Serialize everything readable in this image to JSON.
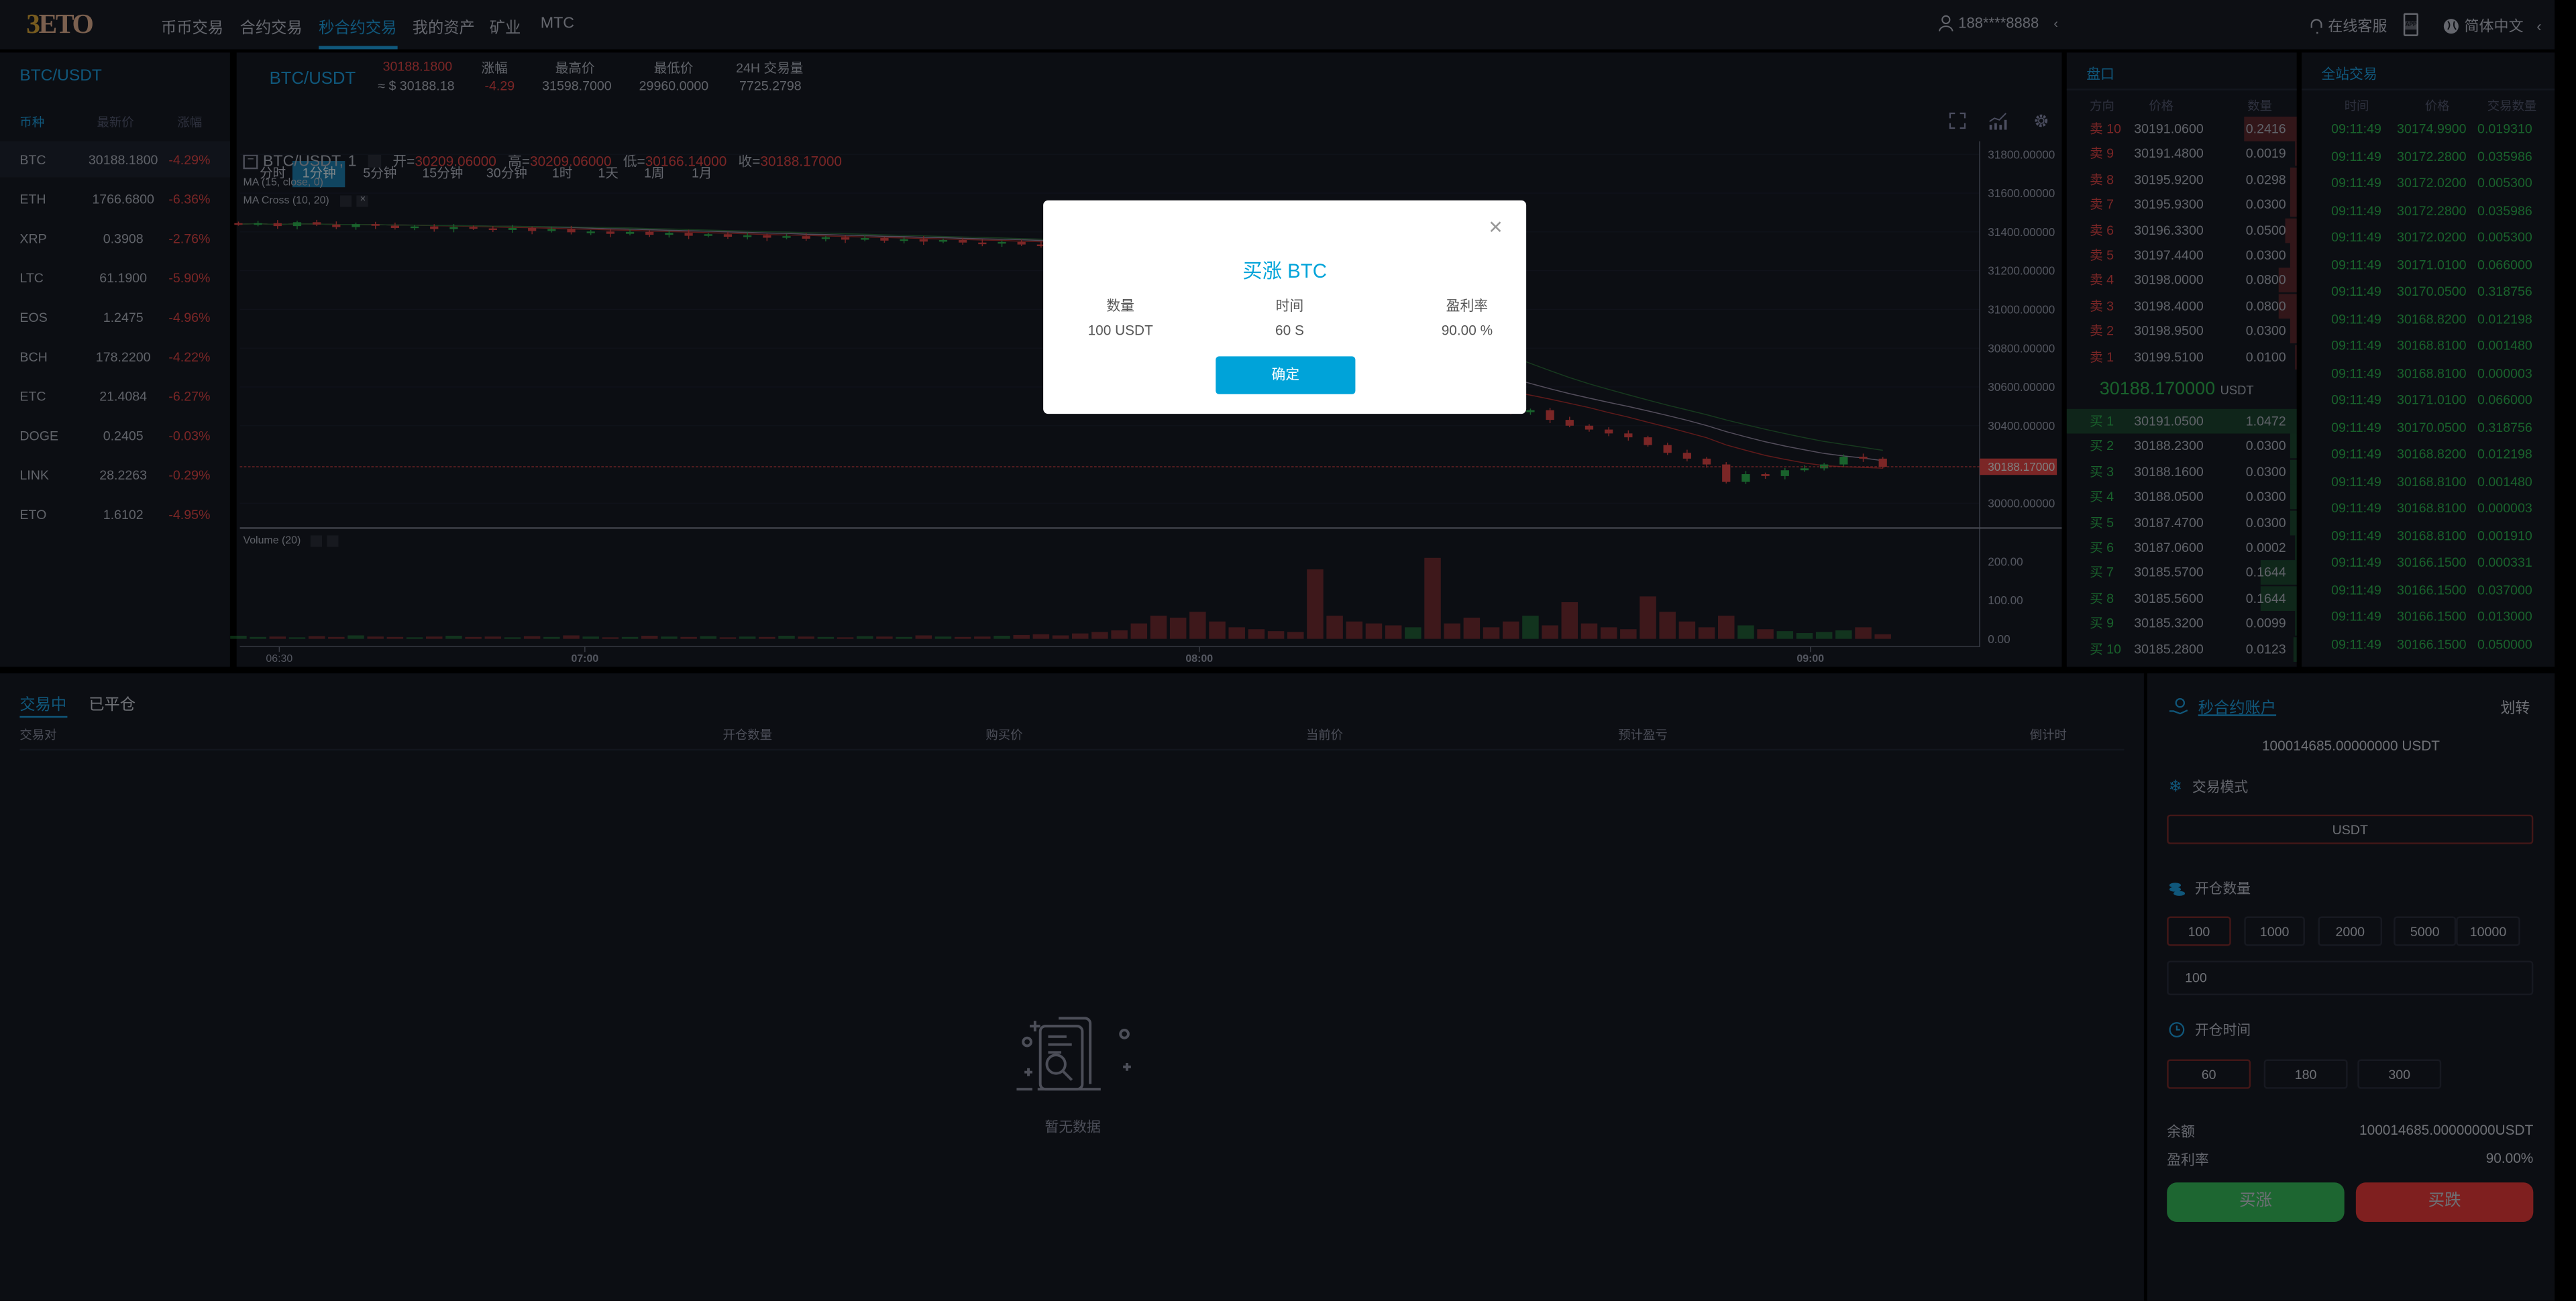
{
  "header": {
    "logo": "3ETO",
    "nav": [
      {
        "label": "币币交易",
        "active": false
      },
      {
        "label": "合约交易",
        "active": false
      },
      {
        "label": "秒合约交易",
        "active": true
      },
      {
        "label": "我的资产",
        "active": false
      },
      {
        "label": "矿业",
        "active": false
      },
      {
        "label": "MTC",
        "active": false
      }
    ],
    "user": "188****8888",
    "support": "在线客服",
    "app_icon_text": "APP",
    "language": "简体中文"
  },
  "markets": {
    "title": "BTC/USDT",
    "columns": [
      "币种",
      "最新价",
      "涨幅"
    ],
    "rows": [
      {
        "coin": "BTC",
        "price": "30188.1800",
        "change": "-4.29%"
      },
      {
        "coin": "ETH",
        "price": "1766.6800",
        "change": "-6.36%"
      },
      {
        "coin": "XRP",
        "price": "0.3908",
        "change": "-2.76%"
      },
      {
        "coin": "LTC",
        "price": "61.1900",
        "change": "-5.90%"
      },
      {
        "coin": "EOS",
        "price": "1.2475",
        "change": "-4.96%"
      },
      {
        "coin": "BCH",
        "price": "178.2200",
        "change": "-4.22%"
      },
      {
        "coin": "ETC",
        "price": "21.4084",
        "change": "-6.27%"
      },
      {
        "coin": "DOGE",
        "price": "0.2405",
        "change": "-0.03%"
      },
      {
        "coin": "LINK",
        "price": "28.2263",
        "change": "-0.29%"
      },
      {
        "coin": "ETO",
        "price": "1.6102",
        "change": "-4.95%"
      }
    ]
  },
  "ticker": {
    "pair": "BTC/USDT",
    "last_price": "30188.1800",
    "usd_price": "≈ $ 30188.18",
    "change_label": "涨幅",
    "change": "-4.29",
    "high_label": "最高价",
    "high": "31598.7000",
    "low_label": "最低价",
    "low": "29960.0000",
    "volume_label": "24H 交易量",
    "volume": "7725.2798"
  },
  "intervals": [
    {
      "label": "分时",
      "active": false
    },
    {
      "label": "1分钟",
      "active": true
    },
    {
      "label": "5分钟",
      "active": false
    },
    {
      "label": "15分钟",
      "active": false
    },
    {
      "label": "30分钟",
      "active": false
    },
    {
      "label": "1时",
      "active": false
    },
    {
      "label": "1天",
      "active": false
    },
    {
      "label": "1周",
      "active": false
    },
    {
      "label": "1月",
      "active": false
    }
  ],
  "chart_legend": {
    "symbol": "BTC/USDT, 1",
    "open_label": "开=",
    "open": "30209.06000",
    "high_label": "高=",
    "high": "30209.06000",
    "low_label": "低=",
    "low": "30166.14000",
    "close_label": "收=",
    "close": "30188.17000",
    "ma": "MA (15, close, 0)",
    "ma_cross": "MA Cross (10, 20)",
    "volume": "Volume (20)"
  },
  "chart_data": {
    "type": "candlestick",
    "colors": {
      "up": "#2fb350",
      "down": "#e04545",
      "ma15": "#9a8fa8",
      "ma10": "#b03030",
      "ma20": "#2a6a38"
    },
    "y_ticks": [
      "31800.00000",
      "31600.00000",
      "31400.00000",
      "31200.00000",
      "31000.00000",
      "30800.00000",
      "30600.00000",
      "30400.00000",
      "30000.00000"
    ],
    "y_tick_values": [
      31800,
      31600,
      31400,
      31200,
      31000,
      30800,
      30600,
      30400,
      30000
    ],
    "current_price": 30188.17,
    "current_price_label": "30188.17000",
    "volume_ticks": [
      "200.00",
      "100.00",
      "0.00"
    ],
    "volume_tick_values": [
      200,
      100,
      0
    ],
    "x_ticks": [
      "06:30",
      "07:00",
      "08:00",
      "09:00"
    ],
    "closes": [
      31440,
      31445,
      31430,
      31450,
      31438,
      31425,
      31440,
      31432,
      31420,
      31428,
      31415,
      31425,
      31418,
      31410,
      31420,
      31405,
      31415,
      31398,
      31402,
      31390,
      31400,
      31385,
      31395,
      31380,
      31388,
      31375,
      31382,
      31370,
      31378,
      31365,
      31372,
      31360,
      31368,
      31355,
      31362,
      31350,
      31358,
      31345,
      31340,
      31348,
      31335,
      31330,
      31320,
      31310,
      31300,
      31290,
      31250,
      31180,
      31100,
      31020,
      30950,
      30900,
      30840,
      30780,
      30720,
      30690,
      30660,
      30640,
      30620,
      30600,
      30610,
      30580,
      30560,
      30520,
      30500,
      30470,
      30480,
      30430,
      30400,
      30380,
      30360,
      30340,
      30300,
      30260,
      30230,
      30200,
      30110,
      30150,
      30140,
      30170,
      30180,
      30200,
      30240,
      30230,
      30188
    ],
    "volumes": [
      8,
      5,
      6,
      4,
      7,
      5,
      9,
      6,
      5,
      4,
      6,
      8,
      5,
      6,
      4,
      7,
      5,
      9,
      6,
      4,
      5,
      8,
      6,
      5,
      7,
      4,
      6,
      5,
      8,
      6,
      5,
      4,
      7,
      6,
      5,
      9,
      6,
      5,
      6,
      8,
      10,
      12,
      9,
      14,
      18,
      22,
      40,
      60,
      55,
      70,
      45,
      30,
      25,
      20,
      18,
      180,
      60,
      45,
      40,
      35,
      30,
      210,
      40,
      55,
      30,
      45,
      60,
      35,
      95,
      40,
      30,
      25,
      110,
      70,
      45,
      30,
      60,
      35,
      25,
      20,
      15,
      18,
      22,
      30,
      12
    ]
  },
  "orderbook": {
    "title": "盘口",
    "columns": [
      "方向",
      "价格",
      "数量"
    ],
    "asks": [
      {
        "side": "卖 10",
        "price": "30191.0600",
        "qty": "0.2416"
      },
      {
        "side": "卖 9",
        "price": "30191.4800",
        "qty": "0.0019"
      },
      {
        "side": "卖 8",
        "price": "30195.9200",
        "qty": "0.0298"
      },
      {
        "side": "卖 7",
        "price": "30195.9300",
        "qty": "0.0300"
      },
      {
        "side": "卖 6",
        "price": "30196.3300",
        "qty": "0.0500"
      },
      {
        "side": "卖 5",
        "price": "30197.4400",
        "qty": "0.0300"
      },
      {
        "side": "卖 4",
        "price": "30198.0000",
        "qty": "0.0800"
      },
      {
        "side": "卖 3",
        "price": "30198.4000",
        "qty": "0.0800"
      },
      {
        "side": "卖 2",
        "price": "30198.9500",
        "qty": "0.0300"
      },
      {
        "side": "卖 1",
        "price": "30199.5100",
        "qty": "0.0100"
      }
    ],
    "mid_price": "30188.170000",
    "mid_unit": "USDT",
    "bids": [
      {
        "side": "买 1",
        "price": "30191.0500",
        "qty": "1.0472"
      },
      {
        "side": "买 2",
        "price": "30188.2300",
        "qty": "0.0300"
      },
      {
        "side": "买 3",
        "price": "30188.1600",
        "qty": "0.0300"
      },
      {
        "side": "买 4",
        "price": "30188.0500",
        "qty": "0.0300"
      },
      {
        "side": "买 5",
        "price": "30187.4700",
        "qty": "0.0300"
      },
      {
        "side": "买 6",
        "price": "30187.0600",
        "qty": "0.0002"
      },
      {
        "side": "买 7",
        "price": "30185.5700",
        "qty": "0.1644"
      },
      {
        "side": "买 8",
        "price": "30185.5600",
        "qty": "0.1644"
      },
      {
        "side": "买 9",
        "price": "30185.3200",
        "qty": "0.0099"
      },
      {
        "side": "买 10",
        "price": "30185.2800",
        "qty": "0.0123"
      }
    ]
  },
  "trades": {
    "title": "全站交易",
    "columns": [
      "时间",
      "价格",
      "交易数量"
    ],
    "rows": [
      {
        "time": "09:11:49",
        "price": "30174.9900",
        "qty": "0.019310"
      },
      {
        "time": "09:11:49",
        "price": "30172.2800",
        "qty": "0.035986"
      },
      {
        "time": "09:11:49",
        "price": "30172.0200",
        "qty": "0.005300"
      },
      {
        "time": "09:11:49",
        "price": "30172.2800",
        "qty": "0.035986"
      },
      {
        "time": "09:11:49",
        "price": "30172.0200",
        "qty": "0.005300"
      },
      {
        "time": "09:11:49",
        "price": "30171.0100",
        "qty": "0.066000"
      },
      {
        "time": "09:11:49",
        "price": "30170.0500",
        "qty": "0.318756"
      },
      {
        "time": "09:11:49",
        "price": "30168.8200",
        "qty": "0.012198"
      },
      {
        "time": "09:11:49",
        "price": "30168.8100",
        "qty": "0.001480"
      },
      {
        "time": "09:11:49",
        "price": "30168.8100",
        "qty": "0.000003"
      },
      {
        "time": "09:11:49",
        "price": "30171.0100",
        "qty": "0.066000"
      },
      {
        "time": "09:11:49",
        "price": "30170.0500",
        "qty": "0.318756"
      },
      {
        "time": "09:11:49",
        "price": "30168.8200",
        "qty": "0.012198"
      },
      {
        "time": "09:11:49",
        "price": "30168.8100",
        "qty": "0.001480"
      },
      {
        "time": "09:11:49",
        "price": "30168.8100",
        "qty": "0.000003"
      },
      {
        "time": "09:11:49",
        "price": "30168.8100",
        "qty": "0.001910"
      },
      {
        "time": "09:11:49",
        "price": "30166.1500",
        "qty": "0.000331"
      },
      {
        "time": "09:11:49",
        "price": "30166.1500",
        "qty": "0.037000"
      },
      {
        "time": "09:11:49",
        "price": "30166.1500",
        "qty": "0.013000"
      },
      {
        "time": "09:11:49",
        "price": "30166.1500",
        "qty": "0.050000"
      }
    ]
  },
  "positions": {
    "tabs": [
      {
        "label": "交易中",
        "active": true
      },
      {
        "label": "已平仓",
        "active": false
      }
    ],
    "columns": [
      "交易对",
      "开仓数量",
      "购买价",
      "当前价",
      "预计盈亏",
      "倒计时"
    ],
    "empty_text": "暂无数据"
  },
  "account": {
    "title": "秒合约账户",
    "transfer": "划转",
    "balance_display": "100014685.00000000 USDT",
    "mode_label": "交易模式",
    "mode_value": "USDT",
    "amount_label": "开仓数量",
    "amount_options": [
      "100",
      "1000",
      "2000",
      "5000",
      "10000"
    ],
    "amount_selected": "100",
    "amount_value": "100",
    "time_label": "开仓时间",
    "time_options": [
      "60",
      "180",
      "300"
    ],
    "time_selected": "60",
    "balance_label": "余额",
    "balance_value": "100014685.00000000USDT",
    "profit_label": "盈利率",
    "profit_value": "90.00%",
    "buy_up": "买涨",
    "buy_down": "买跌",
    "up_color": "#2fb350",
    "down_color": "#e04545"
  },
  "modal": {
    "title": "买涨 BTC",
    "amount_label": "数量",
    "amount_value": "100 USDT",
    "time_label": "时间",
    "time_value": "60 S",
    "profit_label": "盈利率",
    "profit_value": "90.00 %",
    "confirm": "确定",
    "accent": "#00a3d9"
  }
}
